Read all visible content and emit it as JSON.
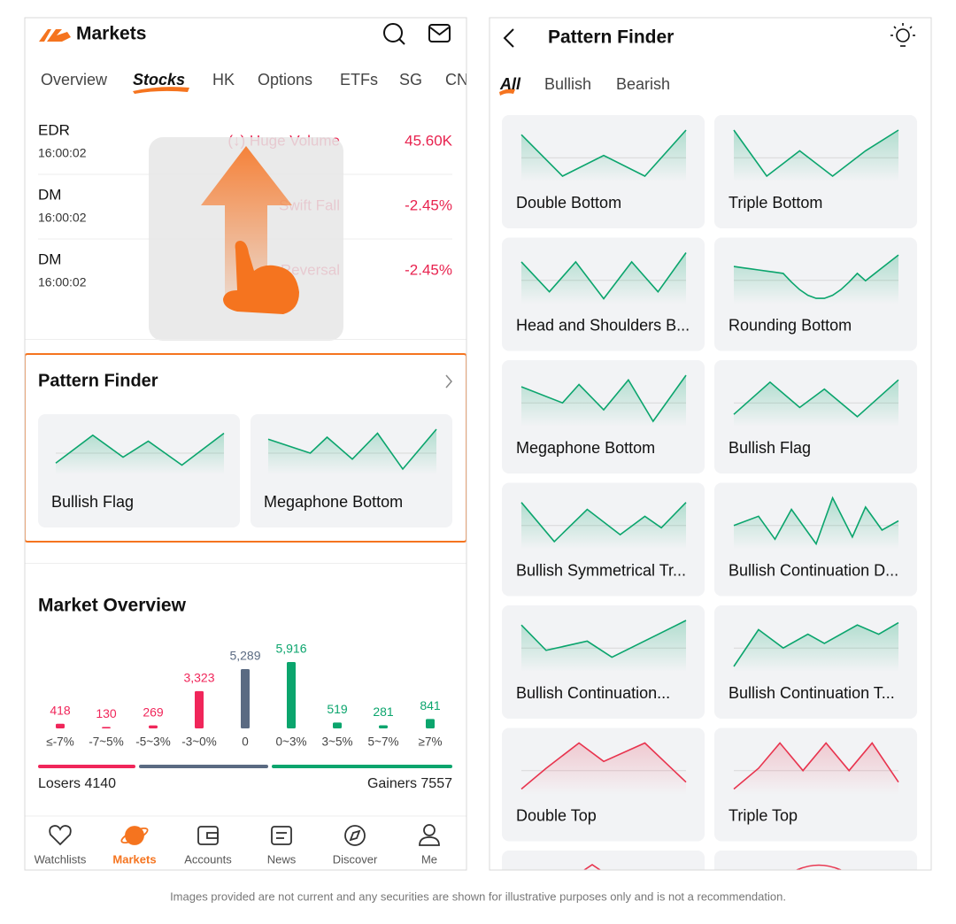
{
  "left": {
    "header": {
      "title": "Markets"
    },
    "tabs": [
      "Overview",
      "Stocks",
      "HK",
      "Options",
      "ETFs",
      "SG",
      "CN"
    ],
    "rows": [
      {
        "symbol": "EDR",
        "time": "16:00:02",
        "signal": "(↓) Huge Volume",
        "change": "45.60K"
      },
      {
        "symbol": "DM",
        "time": "16:00:02",
        "signal": "Swift Fall",
        "change": "-2.45%"
      },
      {
        "symbol": "DM",
        "time": "16:00:02",
        "signal": "Reversal",
        "change": "-2.45%"
      }
    ],
    "pattern_finder": {
      "title": "Pattern Finder",
      "cards": [
        "Bullish Flag",
        "Megaphone Bottom"
      ]
    },
    "losers": "Losers 4140",
    "gainers": "Gainers 7557",
    "nav": [
      "Watchlists",
      "Markets",
      "Accounts",
      "News",
      "Discover",
      "Me"
    ]
  },
  "chart_data": {
    "type": "bar",
    "title": "Market Overview",
    "categories": [
      "≤-7%",
      "-7~5%",
      "-5~3%",
      "-3~0%",
      "0",
      "0~3%",
      "3~5%",
      "5~7%",
      "≥7%"
    ],
    "values": [
      418,
      130,
      269,
      3323,
      5289,
      5916,
      519,
      281,
      841
    ],
    "value_labels": [
      "418",
      "130",
      "269",
      "3,323",
      "5,289",
      "5,916",
      "519",
      "281",
      "841"
    ],
    "colors": [
      "#f0265a",
      "#f0265a",
      "#f0265a",
      "#f0265a",
      "#5a6a82",
      "#0ba56d",
      "#0ba56d",
      "#0ba56d",
      "#0ba56d"
    ]
  },
  "right": {
    "header": {
      "title": "Pattern Finder"
    },
    "tabs": [
      "All",
      "Bullish",
      "Bearish"
    ],
    "cards": [
      "Double Bottom",
      "Triple Bottom",
      "Head and Shoulders B...",
      "Rounding Bottom",
      "Megaphone Bottom",
      "Bullish Flag",
      "Bullish Symmetrical Tr...",
      "Bullish Continuation D...",
      "Bullish Continuation...",
      "Bullish Continuation T...",
      "Double Top",
      "Triple Top"
    ]
  },
  "disclaimer": "Images provided are not current and any securities are shown for illustrative purposes only and is not a recommendation."
}
